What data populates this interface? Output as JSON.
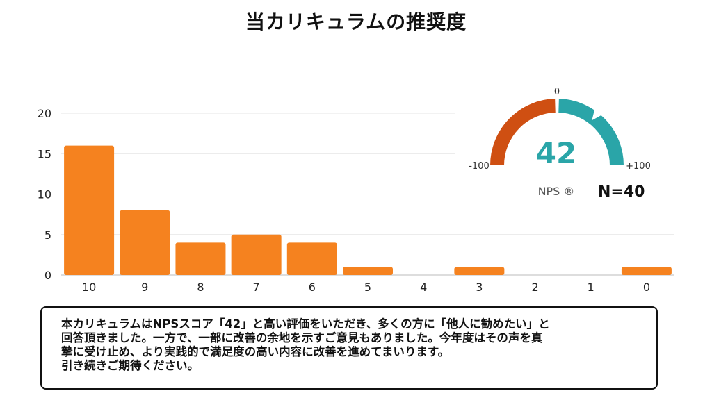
{
  "title": "当カリキュラムの推奨度",
  "chart_data": {
    "type": "bar",
    "categories": [
      "10",
      "9",
      "8",
      "7",
      "6",
      "5",
      "4",
      "3",
      "2",
      "1",
      "0"
    ],
    "values": [
      16,
      8,
      4,
      5,
      4,
      1,
      0,
      1,
      0,
      0,
      1
    ],
    "yticks": [
      "0",
      "5",
      "10",
      "15",
      "20"
    ],
    "ylim": [
      0,
      20
    ],
    "grid": true,
    "bar_color": "#f5821f"
  },
  "gauge": {
    "value_label": "42",
    "value": 42,
    "min_label": "-100",
    "mid_label": "0",
    "max_label": "+100",
    "nps_label": "NPS ®",
    "n_label": "N=40",
    "negative_color": "#cf4f12",
    "positive_color": "#2aa5a8"
  },
  "comment": "本カリキュラムはNPSスコア「42」と高い評価をいただき、多くの方に「他人に勧めたい」と\n回答頂きました。一方で、一部に改善の余地を示すご意見もありました。今年度はその声を真\n摯に受け止め、より実践的で満足度の高い内容に改善を進めてまいります。\n引き続きご期待ください。"
}
